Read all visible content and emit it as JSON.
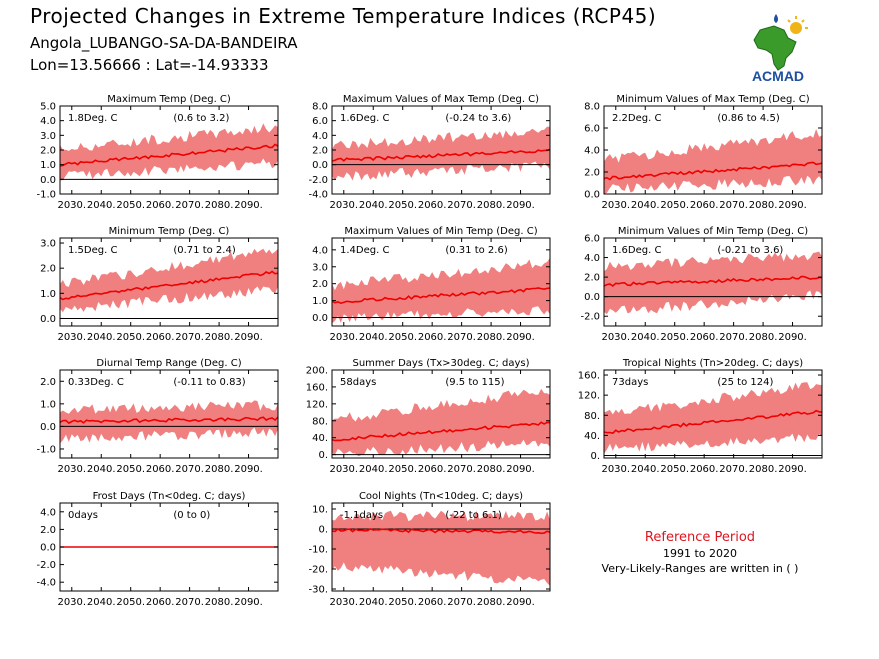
{
  "header": {
    "title": "Projected Changes in Extreme Temperature Indices (RCP45)",
    "station": "Angola_LUBANGO-SA-DA-BANDEIRA",
    "coords": "Lon=13.56666 : Lat=-14.93333"
  },
  "logo": {
    "text": "ACMAD",
    "icon": "africa-map-sun-logo"
  },
  "reference": {
    "title": "Reference Period",
    "years": "1991 to 2020",
    "note": "Very-Likely-Ranges are written in ( )"
  },
  "colors": {
    "band": "#f08080",
    "line": "#ee0000",
    "zero": "#000000",
    "logo_green": "#3a9a2a",
    "logo_blue": "#1e4fa0",
    "logo_sun": "#f0b418"
  },
  "chart_data": [
    {
      "type": "area",
      "title": "Maximum Temp (Deg. C)",
      "stat": "1.8Deg. C",
      "range": "(0.6 to 3.2)",
      "x_ticks": [
        "2030.",
        "2040.",
        "2050.",
        "2060.",
        "2070.",
        "2080.",
        "2090."
      ],
      "x_range": [
        2026,
        2100
      ],
      "y_ticks": [
        "5.0",
        "4.0",
        "3.0",
        "2.0",
        "1.0",
        "0.0",
        "-1.0"
      ],
      "ylim": [
        -1.0,
        5.0
      ],
      "series": {
        "mean_start": 1.0,
        "mean_end": 2.3,
        "band_low_start": 0.3,
        "band_low_end": 1.2,
        "band_high_start": 2.0,
        "band_high_end": 3.5
      }
    },
    {
      "type": "area",
      "title": "Maximum Values of Max Temp (Deg. C)",
      "stat": "1.6Deg. C",
      "range": "(-0.24 to 3.6)",
      "x_ticks": [
        "2030.",
        "2040.",
        "2050.",
        "2060.",
        "2070.",
        "2080.",
        "2090."
      ],
      "x_range": [
        2026,
        2100
      ],
      "y_ticks": [
        "8.0",
        "6.0",
        "4.0",
        "2.0",
        "0.0",
        "-2.0",
        "-4.0"
      ],
      "ylim": [
        -4.0,
        8.0
      ],
      "series": {
        "mean_start": 0.6,
        "mean_end": 1.9,
        "band_low_start": -1.5,
        "band_low_end": 0.0,
        "band_high_start": 2.5,
        "band_high_end": 4.5
      }
    },
    {
      "type": "area",
      "title": "Minimum Values of Max Temp (Deg. C)",
      "stat": "2.2Deg. C",
      "range": "(0.86 to 4.5)",
      "x_ticks": [
        "2030.",
        "2040.",
        "2050.",
        "2060.",
        "2070.",
        "2080.",
        "2090."
      ],
      "x_range": [
        2026,
        2100
      ],
      "y_ticks": [
        "8.0",
        "6.0",
        "4.0",
        "2.0",
        "0.0"
      ],
      "ylim": [
        0.0,
        8.0
      ],
      "series": {
        "mean_start": 1.4,
        "mean_end": 2.8,
        "band_low_start": 0.5,
        "band_low_end": 1.4,
        "band_high_start": 3.0,
        "band_high_end": 5.5
      }
    },
    {
      "type": "area",
      "title": "Minimum Temp (Deg. C)",
      "stat": "1.5Deg. C",
      "range": "(0.71 to 2.4)",
      "x_ticks": [
        "2030.",
        "2040.",
        "2050.",
        "2060.",
        "2070.",
        "2080.",
        "2090."
      ],
      "x_range": [
        2026,
        2100
      ],
      "y_ticks": [
        "3.0",
        "2.0",
        "1.0",
        "0.0"
      ],
      "ylim": [
        -0.3,
        3.2
      ],
      "series": {
        "mean_start": 0.8,
        "mean_end": 1.85,
        "band_low_start": 0.4,
        "band_low_end": 1.2,
        "band_high_start": 1.3,
        "band_high_end": 2.7
      }
    },
    {
      "type": "area",
      "title": "Maximum Values of Min Temp (Deg. C)",
      "stat": "1.4Deg. C",
      "range": "(0.31 to 2.6)",
      "x_ticks": [
        "2030.",
        "2040.",
        "2050.",
        "2060.",
        "2070.",
        "2080.",
        "2090."
      ],
      "x_range": [
        2026,
        2100
      ],
      "y_ticks": [
        "4.0",
        "3.0",
        "2.0",
        "1.0",
        "0.0"
      ],
      "ylim": [
        -0.5,
        4.7
      ],
      "series": {
        "mean_start": 0.9,
        "mean_end": 1.7,
        "band_low_start": 0.0,
        "band_low_end": 0.5,
        "band_high_start": 1.8,
        "band_high_end": 3.2
      }
    },
    {
      "type": "area",
      "title": "Minimum Values of Min Temp (Deg. C)",
      "stat": "1.6Deg. C",
      "range": "(-0.21 to 3.6)",
      "x_ticks": [
        "2030.",
        "2040.",
        "2050.",
        "2060.",
        "2070.",
        "2080.",
        "2090."
      ],
      "x_range": [
        2026,
        2100
      ],
      "y_ticks": [
        "6.0",
        "4.0",
        "2.0",
        "0.0",
        "-2.0"
      ],
      "ylim": [
        -3.0,
        6.0
      ],
      "series": {
        "mean_start": 1.2,
        "mean_end": 2.0,
        "band_low_start": -1.5,
        "band_low_end": 0.3,
        "band_high_start": 3.0,
        "band_high_end": 4.2
      }
    },
    {
      "type": "area",
      "title": "Diurnal Temp Range (Deg. C)",
      "stat": "0.33Deg. C",
      "range": "(-0.11 to 0.83)",
      "x_ticks": [
        "2030.",
        "2040.",
        "2050.",
        "2060.",
        "2070.",
        "2080.",
        "2090."
      ],
      "x_range": [
        2026,
        2100
      ],
      "y_ticks": [
        "2.0",
        "1.0",
        "0.0",
        "-1.0"
      ],
      "ylim": [
        -1.4,
        2.5
      ],
      "series": {
        "mean_start": 0.2,
        "mean_end": 0.35,
        "band_low_start": -0.5,
        "band_low_end": -0.2,
        "band_high_start": 0.7,
        "band_high_end": 0.9
      }
    },
    {
      "type": "area",
      "title": "Summer Days (Tx>30deg. C; days)",
      "stat": "58days",
      "range": "(9.5 to 115)",
      "x_ticks": [
        "2030.",
        "2040.",
        "2050.",
        "2060.",
        "2070.",
        "2080.",
        "2090."
      ],
      "x_range": [
        2026,
        2100
      ],
      "y_ticks": [
        "200.",
        "160.",
        "120.",
        "80.",
        "40.",
        "0."
      ],
      "ylim": [
        -8,
        200
      ],
      "series": {
        "mean_start": 35,
        "mean_end": 75,
        "band_low_start": 5,
        "band_low_end": 30,
        "band_high_start": 80,
        "band_high_end": 150
      }
    },
    {
      "type": "area",
      "title": "Tropical Nights (Tn>20deg. C; days)",
      "stat": "73days",
      "range": "(25 to 124)",
      "x_ticks": [
        "2030.",
        "2040.",
        "2050.",
        "2060.",
        "2070.",
        "2080.",
        "2090."
      ],
      "x_range": [
        2026,
        2100
      ],
      "y_ticks": [
        "160.",
        "120.",
        "80.",
        "40.",
        "0."
      ],
      "ylim": [
        -5,
        170
      ],
      "series": {
        "mean_start": 45,
        "mean_end": 88,
        "band_low_start": 15,
        "band_low_end": 40,
        "band_high_start": 80,
        "band_high_end": 140
      }
    },
    {
      "type": "area",
      "title": "Frost Days (Tn<0deg. C; days)",
      "stat": "0days",
      "range": "(0 to 0)",
      "x_ticks": [
        "2030.",
        "2040.",
        "2050.",
        "2060.",
        "2070.",
        "2080.",
        "2090."
      ],
      "x_range": [
        2026,
        2100
      ],
      "y_ticks": [
        "4.0",
        "2.0",
        "0.0",
        "-2.0",
        "-4.0"
      ],
      "ylim": [
        -5,
        5
      ],
      "series": {
        "mean_start": 0,
        "mean_end": 0,
        "band_low_start": 0,
        "band_low_end": 0,
        "band_high_start": 0,
        "band_high_end": 0
      }
    },
    {
      "type": "area",
      "title": "Cool Nights (Tn<10deg. C; days)",
      "stat": "-1.1days",
      "range": "(-22 to 6.1)",
      "x_ticks": [
        "2030.",
        "2040.",
        "2050.",
        "2060.",
        "2070.",
        "2080.",
        "2090."
      ],
      "x_range": [
        2026,
        2100
      ],
      "y_ticks": [
        "10.",
        "0.",
        "-10.",
        "-20.",
        "-30."
      ],
      "ylim": [
        -31,
        13
      ],
      "series": {
        "mean_start": -0.5,
        "mean_end": -1.5,
        "band_low_start": -18,
        "band_low_end": -26,
        "band_high_start": 6,
        "band_high_end": 6
      }
    }
  ]
}
